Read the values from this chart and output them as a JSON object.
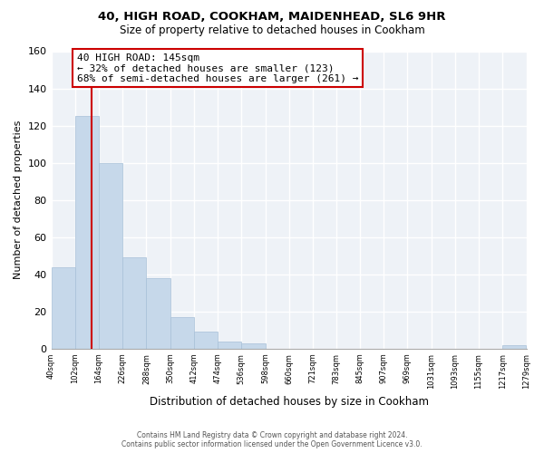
{
  "title": "40, HIGH ROAD, COOKHAM, MAIDENHEAD, SL6 9HR",
  "subtitle": "Size of property relative to detached houses in Cookham",
  "xlabel": "Distribution of detached houses by size in Cookham",
  "ylabel": "Number of detached properties",
  "bar_edges": [
    40,
    102,
    164,
    226,
    288,
    350,
    412,
    474,
    536,
    598,
    660,
    721,
    783,
    845,
    907,
    969,
    1031,
    1093,
    1155,
    1217,
    1279
  ],
  "bar_heights": [
    44,
    125,
    100,
    49,
    38,
    17,
    9,
    4,
    3,
    0,
    0,
    0,
    0,
    0,
    0,
    0,
    0,
    0,
    0,
    2
  ],
  "bar_color": "#c6d8ea",
  "bar_edgecolor": "#a8c0d8",
  "property_line_x": 145,
  "property_line_color": "#cc0000",
  "ylim": [
    0,
    160
  ],
  "annotation_line1": "40 HIGH ROAD: 145sqm",
  "annotation_line2": "← 32% of detached houses are smaller (123)",
  "annotation_line3": "68% of semi-detached houses are larger (261) →",
  "footer_line1": "Contains HM Land Registry data © Crown copyright and database right 2024.",
  "footer_line2": "Contains public sector information licensed under the Open Government Licence v3.0.",
  "tick_labels": [
    "40sqm",
    "102sqm",
    "164sqm",
    "226sqm",
    "288sqm",
    "350sqm",
    "412sqm",
    "474sqm",
    "536sqm",
    "598sqm",
    "660sqm",
    "721sqm",
    "783sqm",
    "845sqm",
    "907sqm",
    "969sqm",
    "1031sqm",
    "1093sqm",
    "1155sqm",
    "1217sqm",
    "1279sqm"
  ],
  "background_color": "#eef2f7",
  "grid_color": "#ffffff"
}
